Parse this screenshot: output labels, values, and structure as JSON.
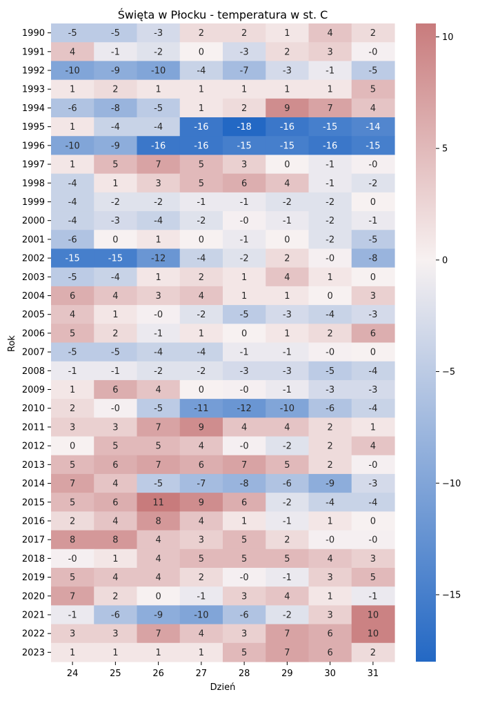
{
  "chart_data": {
    "type": "heatmap",
    "title": "Święta w Płocku - temperatura w st. C",
    "xlabel": "Dzień",
    "ylabel": "Rok",
    "x": [
      "24",
      "25",
      "26",
      "27",
      "28",
      "29",
      "30",
      "31"
    ],
    "y": [
      "1990",
      "1991",
      "1992",
      "1993",
      "1994",
      "1995",
      "1996",
      "1997",
      "1998",
      "1999",
      "2000",
      "2001",
      "2002",
      "2003",
      "2004",
      "2005",
      "2006",
      "2007",
      "2008",
      "2009",
      "2010",
      "2011",
      "2012",
      "2013",
      "2014",
      "2015",
      "2016",
      "2017",
      "2018",
      "2019",
      "2020",
      "2021",
      "2022",
      "2023"
    ],
    "values": [
      [
        -5,
        -5,
        -3,
        2,
        2,
        1,
        4,
        2
      ],
      [
        4,
        -1,
        -2,
        0,
        -3,
        2,
        3,
        -0.2
      ],
      [
        -10,
        -9,
        -10,
        -4,
        -7,
        -3,
        -1,
        -5
      ],
      [
        1,
        2,
        1,
        1,
        1,
        1,
        1,
        5
      ],
      [
        -6,
        -8,
        -5,
        1,
        2,
        9,
        7,
        4
      ],
      [
        1,
        -4,
        -4,
        -16,
        -18,
        -16,
        -15,
        -14
      ],
      [
        -10,
        -9,
        -16,
        -16,
        -15,
        -15,
        -16,
        -15
      ],
      [
        1,
        5,
        7,
        5,
        3,
        0,
        -1,
        -0.2
      ],
      [
        -4,
        1,
        3,
        5,
        6,
        4,
        -1,
        -2
      ],
      [
        -4,
        -2,
        -2,
        -1,
        -1,
        -2,
        -2,
        0
      ],
      [
        -4,
        -3,
        -4,
        -2,
        -0.2,
        -1,
        -2,
        -1
      ],
      [
        -6,
        0,
        1,
        0,
        -1,
        0,
        -2,
        -5
      ],
      [
        -15,
        -15,
        -12,
        -4,
        -2,
        2,
        -0.2,
        -8
      ],
      [
        -5,
        -4,
        1,
        2,
        1,
        4,
        1,
        0
      ],
      [
        6,
        4,
        3,
        4,
        1,
        1,
        0,
        3
      ],
      [
        4,
        1,
        -0.2,
        -2,
        -5,
        -3,
        -4,
        -3
      ],
      [
        5,
        2,
        -1,
        1,
        0,
        1,
        2,
        6
      ],
      [
        -5,
        -5,
        -4,
        -4,
        -1,
        -1,
        -0.2,
        0
      ],
      [
        -1,
        -1,
        -2,
        -2,
        -3,
        -3,
        -5,
        -4
      ],
      [
        1,
        6,
        4,
        0,
        -0.2,
        -1,
        -3,
        -3
      ],
      [
        2,
        -0.2,
        -5,
        -11,
        -12,
        -10,
        -6,
        -4
      ],
      [
        3,
        3,
        7,
        9,
        4,
        4,
        2,
        1
      ],
      [
        0,
        5,
        5,
        4,
        -0.2,
        -2,
        2,
        4
      ],
      [
        5,
        6,
        7,
        6,
        7,
        5,
        2,
        -0.2
      ],
      [
        7,
        4,
        -5,
        -7,
        -8,
        -6,
        -9,
        -3
      ],
      [
        5,
        6,
        11,
        9,
        6,
        -2,
        -4,
        -4
      ],
      [
        2,
        4,
        8,
        4,
        1,
        -1,
        1,
        0
      ],
      [
        8,
        8,
        4,
        3,
        5,
        2,
        -0.2,
        -0.2
      ],
      [
        -0.2,
        1,
        4,
        5,
        5,
        5,
        4,
        3
      ],
      [
        5,
        4,
        4,
        2,
        -0.2,
        -1,
        3,
        5
      ],
      [
        7,
        2,
        0,
        -1,
        3,
        4,
        1,
        -1
      ],
      [
        -1,
        -6,
        -9,
        -10,
        -6,
        -2,
        3,
        10
      ],
      [
        3,
        3,
        7,
        4,
        3,
        7,
        6,
        10
      ],
      [
        1,
        1,
        1,
        1,
        5,
        7,
        6,
        2
      ]
    ],
    "labels": [
      [
        "-5",
        "-5",
        "-3",
        "2",
        "2",
        "1",
        "4",
        "2"
      ],
      [
        "4",
        "-1",
        "-2",
        "0",
        "-3",
        "2",
        "3",
        "-0"
      ],
      [
        "-10",
        "-9",
        "-10",
        "-4",
        "-7",
        "-3",
        "-1",
        "-5"
      ],
      [
        "1",
        "2",
        "1",
        "1",
        "1",
        "1",
        "1",
        "5"
      ],
      [
        "-6",
        "-8",
        "-5",
        "1",
        "2",
        "9",
        "7",
        "4"
      ],
      [
        "1",
        "-4",
        "-4",
        "-16",
        "-18",
        "-16",
        "-15",
        "-14"
      ],
      [
        "-10",
        "-9",
        "-16",
        "-16",
        "-15",
        "-15",
        "-16",
        "-15"
      ],
      [
        "1",
        "5",
        "7",
        "5",
        "3",
        "0",
        "-1",
        "-0"
      ],
      [
        "-4",
        "1",
        "3",
        "5",
        "6",
        "4",
        "-1",
        "-2"
      ],
      [
        "-4",
        "-2",
        "-2",
        "-1",
        "-1",
        "-2",
        "-2",
        "0"
      ],
      [
        "-4",
        "-3",
        "-4",
        "-2",
        "-0",
        "-1",
        "-2",
        "-1"
      ],
      [
        "-6",
        "0",
        "1",
        "0",
        "-1",
        "0",
        "-2",
        "-5"
      ],
      [
        "-15",
        "-15",
        "-12",
        "-4",
        "-2",
        "2",
        "-0",
        "-8"
      ],
      [
        "-5",
        "-4",
        "1",
        "2",
        "1",
        "4",
        "1",
        "0"
      ],
      [
        "6",
        "4",
        "3",
        "4",
        "1",
        "1",
        "0",
        "3"
      ],
      [
        "4",
        "1",
        "-0",
        "-2",
        "-5",
        "-3",
        "-4",
        "-3"
      ],
      [
        "5",
        "2",
        "-1",
        "1",
        "0",
        "1",
        "2",
        "6"
      ],
      [
        "-5",
        "-5",
        "-4",
        "-4",
        "-1",
        "-1",
        "-0",
        "0"
      ],
      [
        "-1",
        "-1",
        "-2",
        "-2",
        "-3",
        "-3",
        "-5",
        "-4"
      ],
      [
        "1",
        "6",
        "4",
        "0",
        "-0",
        "-1",
        "-3",
        "-3"
      ],
      [
        "2",
        "-0",
        "-5",
        "-11",
        "-12",
        "-10",
        "-6",
        "-4"
      ],
      [
        "3",
        "3",
        "7",
        "9",
        "4",
        "4",
        "2",
        "1"
      ],
      [
        "0",
        "5",
        "5",
        "4",
        "-0",
        "-2",
        "2",
        "4"
      ],
      [
        "5",
        "6",
        "7",
        "6",
        "7",
        "5",
        "2",
        "-0"
      ],
      [
        "7",
        "4",
        "-5",
        "-7",
        "-8",
        "-6",
        "-9",
        "-3"
      ],
      [
        "5",
        "6",
        "11",
        "9",
        "6",
        "-2",
        "-4",
        "-4"
      ],
      [
        "2",
        "4",
        "8",
        "4",
        "1",
        "-1",
        "1",
        "0"
      ],
      [
        "8",
        "8",
        "4",
        "3",
        "5",
        "2",
        "-0",
        "-0"
      ],
      [
        "-0",
        "1",
        "4",
        "5",
        "5",
        "5",
        "4",
        "3"
      ],
      [
        "5",
        "4",
        "4",
        "2",
        "-0",
        "-1",
        "3",
        "5"
      ],
      [
        "7",
        "2",
        "0",
        "-1",
        "3",
        "4",
        "1",
        "-1"
      ],
      [
        "-1",
        "-6",
        "-9",
        "-10",
        "-6",
        "-2",
        "3",
        "10"
      ],
      [
        "3",
        "3",
        "7",
        "4",
        "3",
        "7",
        "6",
        "10"
      ],
      [
        "1",
        "1",
        "1",
        "1",
        "5",
        "7",
        "6",
        "2"
      ]
    ],
    "colorbar": {
      "min": -18,
      "max": 10.6,
      "ticks": [
        -15,
        -10,
        -5,
        0,
        5,
        10
      ],
      "tick_labels": [
        "−15",
        "−10",
        "−5",
        "0",
        "5",
        "10"
      ],
      "low_color": "#2368c4",
      "mid_color": "#f7f1f1",
      "high_color": "#c87b7c"
    },
    "grid": false,
    "legend": "colorbar-right"
  }
}
